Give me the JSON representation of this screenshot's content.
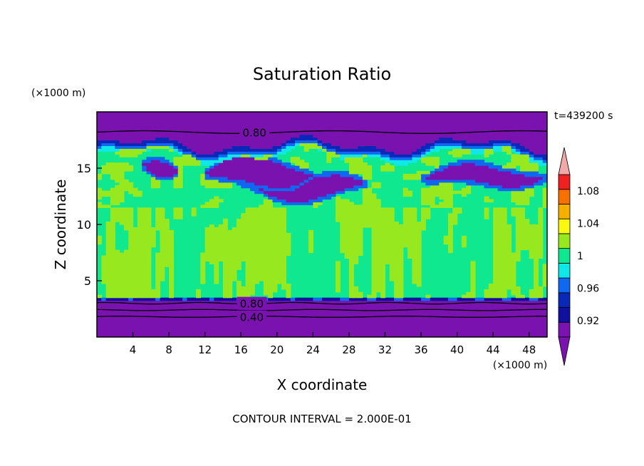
{
  "chart_data": {
    "type": "heatmap",
    "title": "Saturation Ratio",
    "xlabel": "X coordinate",
    "ylabel": "Z coordinate",
    "x_unit": "(×1000 m)",
    "y_unit": "(×1000 m)",
    "xlim": [
      0,
      50
    ],
    "ylim": [
      0,
      20
    ],
    "x_ticks": [
      4,
      8,
      12,
      16,
      20,
      24,
      28,
      32,
      36,
      40,
      44,
      48
    ],
    "y_ticks": [
      5,
      10,
      15
    ],
    "time_label": "t=439200 s",
    "footer": "CONTOUR INTERVAL = 2.000E-01",
    "contour_labels": [
      {
        "text": "0.80",
        "x": 17.5,
        "y": 18.2
      },
      {
        "text": "0.80",
        "x": 17.2,
        "y": 3.0
      },
      {
        "text": "0.40",
        "x": 17.2,
        "y": 1.8
      }
    ],
    "colorbar": {
      "levels": [
        0.9,
        0.92,
        0.94,
        0.96,
        0.98,
        1.0,
        1.02,
        1.04,
        1.06,
        1.08,
        1.1
      ],
      "colors": [
        "#7a12b0",
        "#1010a0",
        "#0a28b8",
        "#1068f0",
        "#10e8e8",
        "#10e890",
        "#98e820",
        "#f8f810",
        "#f8b000",
        "#f87000",
        "#f02020"
      ],
      "under_color": "#7a12b0",
      "over_color": "#f0a8a8",
      "tick_labels": [
        "0.92",
        "0.96",
        "1",
        "1.04",
        "1.08"
      ]
    }
  }
}
